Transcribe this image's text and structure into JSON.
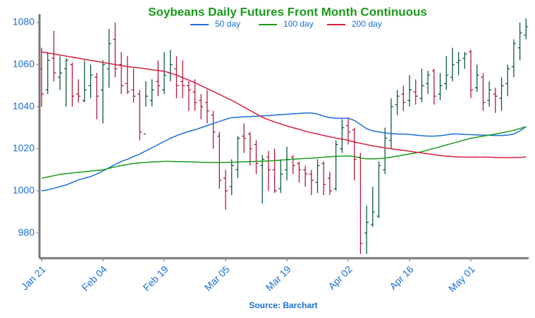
{
  "chart_data": {
    "type": "ohlc",
    "title": "Soybeans Daily Futures Front Month Continuous",
    "source": "Source: Barchart",
    "categories": [
      "Jan 21",
      null,
      null,
      null,
      null,
      null,
      null,
      null,
      null,
      null,
      "Feb 04",
      null,
      null,
      null,
      null,
      null,
      null,
      null,
      null,
      null,
      "Feb 19",
      null,
      null,
      null,
      null,
      null,
      null,
      null,
      null,
      null,
      "Mar 05",
      null,
      null,
      null,
      null,
      null,
      null,
      null,
      null,
      null,
      "Mar 19",
      null,
      null,
      null,
      null,
      null,
      null,
      null,
      null,
      null,
      "Apr 02",
      null,
      null,
      null,
      null,
      null,
      null,
      null,
      null,
      null,
      "Apr 16",
      null,
      null,
      null,
      null,
      null,
      null,
      null,
      null,
      null,
      "May 01",
      null,
      null,
      null,
      null,
      null,
      null,
      null,
      null,
      null
    ],
    "ohlc": {
      "up_color": "#0b5a3e",
      "down_color": "#b0183a",
      "open": [
        1058,
        1048,
        1063,
        1054,
        1058,
        1060,
        1046,
        1043,
        1050,
        1054,
        1048,
        1058,
        1072,
        1060,
        1051,
        1048,
        1046,
        1027,
        1043,
        1052,
        1048,
        1056,
        1058,
        1052,
        1050,
        1047,
        1043,
        1042,
        1036,
        1026,
        1006,
        1002,
        1010,
        1026,
        1027,
        1022,
        1012,
        1016,
        1010,
        1001,
        1010,
        1016,
        1013,
        1010,
        1008,
        1004,
        1013,
        1006,
        1001,
        1020,
        1031,
        1029,
        1016,
        980,
        984,
        988,
        1010,
        1024,
        1041,
        1046,
        1043,
        1047,
        1044,
        1051,
        1057,
        1046,
        1051,
        1054,
        1061,
        1063,
        1066,
        1049,
        1054,
        1043,
        1046,
        1044,
        1051,
        1059,
        1068,
        1074
      ],
      "high": [
        1068,
        1066,
        1076,
        1064,
        1063,
        1061,
        1053,
        1062,
        1060,
        1056,
        1062,
        1077,
        1080,
        1066,
        1064,
        1058,
        1048,
        1052,
        1053,
        1062,
        1066,
        1067,
        1064,
        1062,
        1052,
        1053,
        1046,
        1048,
        1038,
        1028,
        1010,
        1015,
        1026,
        1032,
        1028,
        1024,
        1017,
        1019,
        1020,
        1015,
        1021,
        1017,
        1014,
        1012,
        1010,
        1015,
        1014,
        1009,
        1024,
        1034,
        1035,
        1030,
        1018,
        993,
        1002,
        1014,
        1030,
        1044,
        1048,
        1050,
        1055,
        1053,
        1058,
        1057,
        1058,
        1056,
        1064,
        1068,
        1066,
        1066,
        1067,
        1060,
        1056,
        1052,
        1049,
        1054,
        1060,
        1072,
        1080,
        1082
      ],
      "low": [
        1040,
        1046,
        1052,
        1048,
        1040,
        1040,
        1042,
        1042,
        1044,
        1034,
        1032,
        1049,
        1054,
        1046,
        1046,
        1042,
        1024,
        1040,
        1040,
        1045,
        1046,
        1052,
        1044,
        1044,
        1038,
        1038,
        1034,
        1032,
        1020,
        1001,
        991,
        998,
        1006,
        1018,
        1012,
        1008,
        994,
        1000,
        999,
        999,
        1005,
        1008,
        1004,
        1002,
        998,
        999,
        998,
        998,
        1000,
        1018,
        1022,
        1005,
        970,
        970,
        983,
        987,
        1008,
        1020,
        1036,
        1038,
        1040,
        1041,
        1042,
        1046,
        1041,
        1043,
        1048,
        1052,
        1055,
        1058,
        1044,
        1047,
        1038,
        1040,
        1037,
        1038,
        1045,
        1054,
        1062,
        1072
      ],
      "close": [
        1046,
        1062,
        1056,
        1056,
        1062,
        1045,
        1045,
        1048,
        1055,
        1045,
        1060,
        1070,
        1058,
        1050,
        1047,
        1045,
        1028,
        1045,
        1048,
        1050,
        1055,
        1060,
        1050,
        1050,
        1048,
        1042,
        1040,
        1038,
        1028,
        1005,
        1000,
        1012,
        1025,
        1025,
        1020,
        1013,
        1015,
        1010,
        1000,
        1008,
        1015,
        1012,
        1010,
        1008,
        1005,
        1012,
        1003,
        1000,
        1022,
        1030,
        1028,
        1015,
        975,
        985,
        990,
        1012,
        1025,
        1040,
        1045,
        1042,
        1048,
        1045,
        1050,
        1055,
        1045,
        1050,
        1055,
        1060,
        1062,
        1065,
        1048,
        1055,
        1042,
        1048,
        1045,
        1050,
        1058,
        1070,
        1075,
        1078
      ]
    },
    "series": [
      {
        "name": "50 day",
        "color": "#1a6fd6",
        "values": [
          1000,
          1000.5,
          1001.2,
          1002,
          1002.8,
          1004,
          1005.2,
          1006,
          1006.8,
          1008,
          1009.5,
          1011,
          1012.5,
          1014,
          1015,
          1016.3,
          1017.5,
          1019,
          1020.5,
          1022,
          1023.5,
          1025,
          1026.2,
          1027.3,
          1028.2,
          1029,
          1030,
          1031,
          1032,
          1033,
          1034,
          1034.8,
          1035,
          1035.2,
          1035.3,
          1035.5,
          1035.6,
          1035.8,
          1036,
          1036.2,
          1036.4,
          1036.6,
          1036.8,
          1037,
          1037,
          1036.5,
          1035.5,
          1034.8,
          1034.5,
          1034.5,
          1034.5,
          1033.5,
          1031.5,
          1029.5,
          1028.5,
          1028,
          1027.5,
          1027.2,
          1027,
          1027,
          1026.8,
          1026.5,
          1026.2,
          1026,
          1026,
          1026.2,
          1026.6,
          1027,
          1027,
          1026.8,
          1026.7,
          1026.6,
          1026.5,
          1026.4,
          1026.3,
          1026.3,
          1026.5,
          1027,
          1028.5,
          1030.5
        ]
      },
      {
        "name": "100 day",
        "color": "#1a9a1a",
        "values": [
          1006,
          1006.6,
          1007.2,
          1007.8,
          1008.2,
          1008.5,
          1008.8,
          1009.1,
          1009.4,
          1009.7,
          1010,
          1010.7,
          1011.4,
          1012,
          1012.5,
          1013,
          1013.3,
          1013.5,
          1013.7,
          1013.9,
          1014,
          1014,
          1013.9,
          1013.9,
          1013.8,
          1013.7,
          1013.6,
          1013.5,
          1013.5,
          1013.4,
          1013.5,
          1013.6,
          1013.7,
          1013.8,
          1013.9,
          1014,
          1014.1,
          1014.2,
          1014.4,
          1014.6,
          1014.8,
          1015,
          1015.2,
          1015.4,
          1015.5,
          1015.7,
          1016,
          1016.2,
          1016.4,
          1016.5,
          1016.6,
          1016.3,
          1015.6,
          1015.2,
          1015.2,
          1015.3,
          1015.6,
          1016,
          1016.5,
          1017,
          1017.5,
          1018,
          1018.6,
          1019.4,
          1020.2,
          1021,
          1021.8,
          1022.6,
          1023.4,
          1024.2,
          1025,
          1025.5,
          1026,
          1026.5,
          1027,
          1027.5,
          1028.1,
          1028.8,
          1029.6,
          1030.5
        ]
      },
      {
        "name": "200 day",
        "color": "#d42040",
        "values": [
          1066,
          1065.5,
          1065,
          1064.5,
          1064,
          1063.5,
          1063,
          1062.5,
          1062,
          1061.5,
          1061,
          1060.5,
          1060,
          1059.5,
          1059,
          1058.7,
          1058.4,
          1058,
          1057.5,
          1057.2,
          1056.8,
          1056,
          1055,
          1053.8,
          1052.6,
          1051.4,
          1050,
          1048.6,
          1047.2,
          1045.8,
          1044.4,
          1043,
          1041.4,
          1039.8,
          1038.2,
          1036.6,
          1035,
          1033.8,
          1032.8,
          1031.8,
          1030.8,
          1030,
          1029.2,
          1028.4,
          1027.6,
          1027,
          1026.3,
          1025.7,
          1025.1,
          1024.6,
          1024,
          1023.2,
          1022.6,
          1022,
          1021.4,
          1020.9,
          1020.4,
          1020,
          1019.6,
          1019.2,
          1018.8,
          1018.4,
          1018,
          1017.6,
          1017.2,
          1016.8,
          1016.5,
          1016.3,
          1016.1,
          1016,
          1016,
          1016,
          1016,
          1016,
          1015.9,
          1015.8,
          1015.8,
          1015.8,
          1015.9,
          1016.1
        ]
      }
    ],
    "ylim": [
      968,
      1084
    ],
    "yticks": [
      980,
      1000,
      1020,
      1040,
      1060,
      1080
    ]
  }
}
